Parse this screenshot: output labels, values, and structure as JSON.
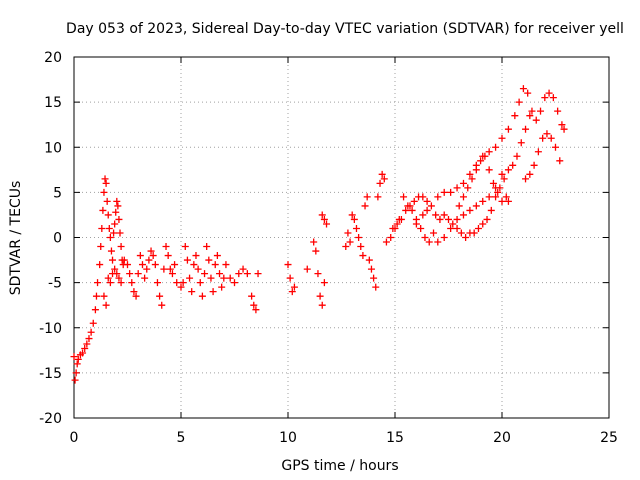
{
  "chart_data": {
    "type": "scatter",
    "title": "Day 053 of 2023, Sidereal Day-to-day VTEC variation (SDTVAR) for receiver yell",
    "xlabel": "GPS time / hours",
    "ylabel": "SDTVAR / TECUs",
    "xlim": [
      0,
      25
    ],
    "ylim": [
      -20,
      20
    ],
    "xticks": [
      0,
      5,
      10,
      15,
      20,
      25
    ],
    "xtick_labels": [
      "0",
      "5",
      "10",
      "15",
      "20",
      "25"
    ],
    "yticks": [
      -20,
      -15,
      -10,
      -5,
      0,
      5,
      10,
      15,
      20
    ],
    "ytick_labels": [
      "-20",
      "-15",
      "-10",
      "-5",
      "0",
      "5",
      "10",
      "15",
      "20"
    ],
    "grid": true,
    "marker": "plus",
    "series": [
      {
        "name": "SDTVAR",
        "color": "#ff0000",
        "points": [
          [
            0.0,
            -13.2
          ],
          [
            0.05,
            -15.8
          ],
          [
            0.1,
            -15.0
          ],
          [
            0.15,
            -14.0
          ],
          [
            0.2,
            -13.5
          ],
          [
            0.3,
            -13.0
          ],
          [
            0.4,
            -12.8
          ],
          [
            0.5,
            -12.3
          ],
          [
            0.6,
            -11.8
          ],
          [
            0.7,
            -11.2
          ],
          [
            0.8,
            -10.5
          ],
          [
            0.9,
            -9.5
          ],
          [
            1.0,
            -8.0
          ],
          [
            1.05,
            -6.5
          ],
          [
            1.1,
            -5.0
          ],
          [
            1.2,
            -3.0
          ],
          [
            1.25,
            -1.0
          ],
          [
            1.3,
            1.0
          ],
          [
            1.35,
            3.0
          ],
          [
            1.4,
            5.0
          ],
          [
            1.45,
            6.5
          ],
          [
            1.5,
            6.0
          ],
          [
            1.55,
            4.0
          ],
          [
            1.6,
            2.5
          ],
          [
            1.65,
            1.0
          ],
          [
            1.7,
            0.0
          ],
          [
            1.75,
            -1.5
          ],
          [
            1.8,
            -2.5
          ],
          [
            1.85,
            0.5
          ],
          [
            1.9,
            1.5
          ],
          [
            1.95,
            2.8
          ],
          [
            2.0,
            4.0
          ],
          [
            2.05,
            3.5
          ],
          [
            2.1,
            2.0
          ],
          [
            2.15,
            0.5
          ],
          [
            2.2,
            -1.0
          ],
          [
            2.25,
            -2.5
          ],
          [
            2.3,
            -3.0
          ],
          [
            1.4,
            -6.5
          ],
          [
            1.5,
            -7.5
          ],
          [
            1.6,
            -4.5
          ],
          [
            1.7,
            -5.0
          ],
          [
            1.8,
            -4.0
          ],
          [
            1.9,
            -3.5
          ],
          [
            2.0,
            -4.0
          ],
          [
            2.1,
            -4.5
          ],
          [
            2.2,
            -5.0
          ],
          [
            2.35,
            -2.5
          ],
          [
            2.5,
            -3.0
          ],
          [
            2.6,
            -4.0
          ],
          [
            2.7,
            -5.0
          ],
          [
            2.8,
            -6.0
          ],
          [
            2.9,
            -6.5
          ],
          [
            3.0,
            -4.0
          ],
          [
            3.1,
            -2.0
          ],
          [
            3.2,
            -3.0
          ],
          [
            3.3,
            -4.5
          ],
          [
            3.4,
            -3.5
          ],
          [
            3.5,
            -2.5
          ],
          [
            3.6,
            -1.5
          ],
          [
            3.7,
            -2.0
          ],
          [
            3.8,
            -3.0
          ],
          [
            3.9,
            -5.0
          ],
          [
            4.0,
            -6.5
          ],
          [
            4.1,
            -7.5
          ],
          [
            4.2,
            -3.5
          ],
          [
            4.3,
            -1.0
          ],
          [
            4.4,
            -2.0
          ],
          [
            4.5,
            -3.5
          ],
          [
            4.6,
            -4.0
          ],
          [
            4.7,
            -3.0
          ],
          [
            4.8,
            -5.0
          ],
          [
            5.0,
            -5.5
          ],
          [
            5.1,
            -5.0
          ],
          [
            5.2,
            -1.0
          ],
          [
            5.3,
            -2.5
          ],
          [
            5.4,
            -4.5
          ],
          [
            5.5,
            -6.0
          ],
          [
            5.6,
            -3.0
          ],
          [
            5.7,
            -2.0
          ],
          [
            5.8,
            -3.5
          ],
          [
            5.9,
            -5.0
          ],
          [
            6.0,
            -6.5
          ],
          [
            6.1,
            -4.0
          ],
          [
            6.2,
            -1.0
          ],
          [
            6.3,
            -2.5
          ],
          [
            6.4,
            -4.5
          ],
          [
            6.5,
            -6.0
          ],
          [
            6.6,
            -3.0
          ],
          [
            6.7,
            -2.0
          ],
          [
            6.8,
            -4.0
          ],
          [
            6.9,
            -5.5
          ],
          [
            7.0,
            -4.5
          ],
          [
            7.1,
            -3.0
          ],
          [
            7.3,
            -4.5
          ],
          [
            7.5,
            -5.0
          ],
          [
            7.7,
            -4.0
          ],
          [
            7.9,
            -3.5
          ],
          [
            8.1,
            -4.0
          ],
          [
            8.3,
            -6.5
          ],
          [
            8.4,
            -7.5
          ],
          [
            8.5,
            -8.0
          ],
          [
            8.6,
            -4.0
          ],
          [
            10.0,
            -3.0
          ],
          [
            10.1,
            -4.5
          ],
          [
            10.2,
            -6.0
          ],
          [
            10.3,
            -5.5
          ],
          [
            10.9,
            -3.5
          ],
          [
            11.2,
            -0.5
          ],
          [
            11.3,
            -1.5
          ],
          [
            11.4,
            -4.0
          ],
          [
            11.5,
            -6.5
          ],
          [
            11.6,
            -7.5
          ],
          [
            11.7,
            -5.0
          ],
          [
            11.6,
            2.5
          ],
          [
            11.7,
            2.0
          ],
          [
            11.8,
            1.5
          ],
          [
            12.7,
            -1.0
          ],
          [
            12.8,
            0.5
          ],
          [
            12.9,
            -0.5
          ],
          [
            13.0,
            2.5
          ],
          [
            13.1,
            2.0
          ],
          [
            13.2,
            1.0
          ],
          [
            13.3,
            0.0
          ],
          [
            13.4,
            -1.0
          ],
          [
            13.5,
            -2.0
          ],
          [
            13.6,
            3.5
          ],
          [
            13.7,
            4.5
          ],
          [
            13.8,
            -2.5
          ],
          [
            13.9,
            -3.5
          ],
          [
            14.0,
            -4.5
          ],
          [
            14.1,
            -5.5
          ],
          [
            14.2,
            4.5
          ],
          [
            14.3,
            6.0
          ],
          [
            14.4,
            7.0
          ],
          [
            14.5,
            6.5
          ],
          [
            14.6,
            -0.5
          ],
          [
            14.8,
            0.0
          ],
          [
            15.0,
            1.0
          ],
          [
            15.2,
            2.0
          ],
          [
            15.4,
            4.5
          ],
          [
            15.6,
            3.5
          ],
          [
            15.8,
            3.0
          ],
          [
            16.0,
            1.5
          ],
          [
            16.3,
            2.5
          ],
          [
            16.5,
            3.0
          ],
          [
            16.8,
            0.5
          ],
          [
            17.0,
            -0.5
          ],
          [
            17.3,
            0.0
          ],
          [
            17.6,
            1.0
          ],
          [
            17.9,
            2.0
          ],
          [
            18.2,
            2.5
          ],
          [
            18.5,
            3.0
          ],
          [
            18.8,
            3.5
          ],
          [
            19.1,
            4.0
          ],
          [
            19.4,
            4.5
          ],
          [
            19.7,
            5.5
          ],
          [
            20.0,
            7.0
          ],
          [
            20.3,
            4.0
          ],
          [
            17.0,
            4.5
          ],
          [
            17.3,
            5.0
          ],
          [
            17.6,
            5.0
          ],
          [
            17.9,
            5.5
          ],
          [
            18.2,
            6.0
          ],
          [
            18.5,
            7.0
          ],
          [
            18.8,
            8.0
          ],
          [
            19.1,
            9.0
          ],
          [
            19.4,
            9.5
          ],
          [
            19.7,
            10.0
          ],
          [
            20.0,
            11.0
          ],
          [
            20.3,
            12.0
          ],
          [
            20.6,
            13.5
          ],
          [
            20.8,
            15.0
          ],
          [
            21.0,
            16.5
          ],
          [
            21.2,
            16.0
          ],
          [
            21.4,
            14.0
          ],
          [
            21.6,
            13.0
          ],
          [
            21.8,
            14.0
          ],
          [
            22.0,
            15.5
          ],
          [
            22.2,
            16.0
          ],
          [
            22.4,
            15.5
          ],
          [
            22.6,
            14.0
          ],
          [
            22.8,
            12.5
          ],
          [
            22.9,
            12.0
          ],
          [
            22.7,
            8.5
          ],
          [
            22.5,
            10.0
          ],
          [
            22.3,
            11.0
          ],
          [
            22.1,
            11.5
          ],
          [
            21.9,
            11.0
          ],
          [
            21.7,
            9.5
          ],
          [
            21.5,
            8.0
          ],
          [
            21.3,
            7.0
          ],
          [
            21.1,
            6.5
          ],
          [
            21.3,
            13.5
          ],
          [
            21.1,
            12.0
          ],
          [
            20.9,
            10.5
          ],
          [
            20.7,
            9.0
          ],
          [
            20.5,
            8.0
          ],
          [
            20.3,
            7.5
          ],
          [
            20.1,
            6.5
          ],
          [
            19.9,
            5.5
          ],
          [
            19.7,
            4.5
          ],
          [
            19.5,
            3.0
          ],
          [
            19.3,
            2.0
          ],
          [
            19.1,
            1.5
          ],
          [
            18.9,
            1.0
          ],
          [
            18.7,
            0.5
          ],
          [
            18.5,
            0.5
          ],
          [
            18.3,
            0.0
          ],
          [
            18.1,
            0.5
          ],
          [
            17.9,
            1.0
          ],
          [
            17.7,
            1.5
          ],
          [
            17.5,
            2.0
          ],
          [
            17.3,
            2.5
          ],
          [
            17.1,
            2.0
          ],
          [
            16.9,
            2.5
          ],
          [
            16.7,
            3.5
          ],
          [
            16.5,
            4.0
          ],
          [
            16.3,
            4.5
          ],
          [
            16.1,
            4.5
          ],
          [
            15.9,
            4.0
          ],
          [
            15.7,
            3.5
          ],
          [
            15.5,
            3.0
          ],
          [
            15.3,
            2.0
          ],
          [
            15.1,
            1.5
          ],
          [
            14.9,
            1.0
          ],
          [
            16.0,
            2.0
          ],
          [
            16.2,
            1.0
          ],
          [
            16.4,
            0.0
          ],
          [
            16.6,
            -0.5
          ],
          [
            18.0,
            3.5
          ],
          [
            18.2,
            4.5
          ],
          [
            18.4,
            5.5
          ],
          [
            18.6,
            6.5
          ],
          [
            18.8,
            7.5
          ],
          [
            19.0,
            8.5
          ],
          [
            19.2,
            9.0
          ],
          [
            19.4,
            7.5
          ],
          [
            19.6,
            6.0
          ],
          [
            19.8,
            5.0
          ],
          [
            20.0,
            4.0
          ],
          [
            20.2,
            4.5
          ]
        ]
      }
    ]
  }
}
